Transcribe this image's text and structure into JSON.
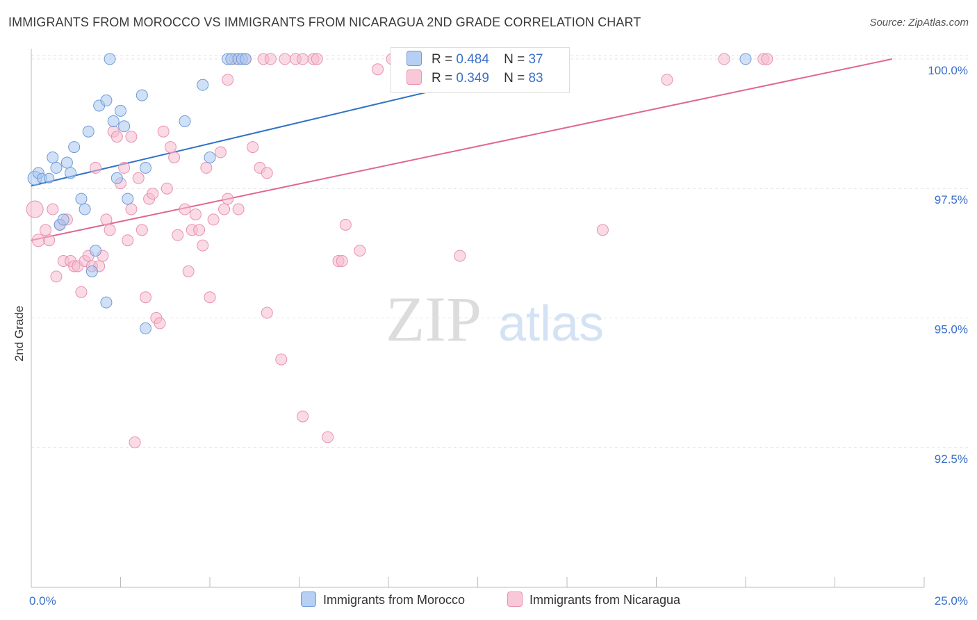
{
  "header": {
    "title": "IMMIGRANTS FROM MOROCCO VS IMMIGRANTS FROM NICARAGUA 2ND GRADE CORRELATION CHART",
    "source": "Source: ZipAtlas.com"
  },
  "watermark": {
    "zip": "ZIP",
    "atlas": "atlas"
  },
  "colors": {
    "morocco_fill": "#a9c6ef",
    "morocco_stroke": "#6d9ad9",
    "morocco_line": "#2f72c8",
    "nicaragua_fill": "#f6bcd0",
    "nicaragua_stroke": "#e891b0",
    "nicaragua_line": "#e0668f",
    "axis_tick_text": "#3a6fc8",
    "grid": "#e2e2e2"
  },
  "legend": {
    "rows": [
      {
        "r_label": "R =",
        "r_value": "0.484",
        "n_label": "N =",
        "n_value": "37"
      },
      {
        "r_label": "R =",
        "r_value": "0.349",
        "n_label": "N =",
        "n_value": "83"
      }
    ],
    "bottom": [
      "Immigrants from Morocco",
      "Immigrants from Nicaragua"
    ]
  },
  "chart_data": {
    "type": "scatter",
    "title": "IMMIGRANTS FROM MOROCCO VS IMMIGRANTS FROM NICARAGUA 2ND GRADE CORRELATION CHART",
    "xlabel": "",
    "ylabel": "2nd Grade",
    "xlim": [
      0,
      25
    ],
    "ylim": [
      89.8,
      100.2
    ],
    "x_ticks_labels": [
      {
        "value": 0,
        "label": "0.0%"
      },
      {
        "value": 25,
        "label": "25.0%"
      }
    ],
    "y_ticks": [
      {
        "value": 100.0,
        "label": "100.0%"
      },
      {
        "value": 97.5,
        "label": "97.5%"
      },
      {
        "value": 95.0,
        "label": "95.0%"
      },
      {
        "value": 92.5,
        "label": "92.5%"
      }
    ],
    "grid": true,
    "series": [
      {
        "name": "Immigrants from Morocco",
        "r": 0.484,
        "n": 37,
        "trend": {
          "x": [
            0.0,
            15.0
          ],
          "y": [
            97.55,
            100.0
          ]
        },
        "points": [
          [
            0.1,
            97.7,
            10
          ],
          [
            0.2,
            97.8,
            8
          ],
          [
            0.3,
            97.7,
            7
          ],
          [
            0.5,
            97.7,
            7
          ],
          [
            0.6,
            98.1,
            8
          ],
          [
            0.7,
            97.9,
            8
          ],
          [
            1.0,
            98.0,
            8
          ],
          [
            1.1,
            97.8,
            8
          ],
          [
            1.2,
            98.3,
            8
          ],
          [
            0.8,
            96.8,
            8
          ],
          [
            0.9,
            96.9,
            8
          ],
          [
            1.4,
            97.3,
            8
          ],
          [
            1.5,
            97.1,
            8
          ],
          [
            1.6,
            98.6,
            8
          ],
          [
            1.7,
            95.9,
            8
          ],
          [
            1.8,
            96.3,
            8
          ],
          [
            1.9,
            99.1,
            8
          ],
          [
            2.1,
            95.3,
            8
          ],
          [
            2.1,
            99.2,
            8
          ],
          [
            2.2,
            100.0,
            8
          ],
          [
            2.3,
            98.8,
            8
          ],
          [
            2.5,
            99.0,
            8
          ],
          [
            2.4,
            97.7,
            8
          ],
          [
            2.6,
            98.7,
            8
          ],
          [
            2.7,
            97.3,
            8
          ],
          [
            3.1,
            99.3,
            8
          ],
          [
            3.2,
            97.9,
            8
          ],
          [
            3.2,
            94.8,
            8
          ],
          [
            4.3,
            98.8,
            8
          ],
          [
            4.8,
            99.5,
            8
          ],
          [
            5.0,
            98.1,
            8
          ],
          [
            5.5,
            100.0,
            8
          ],
          [
            5.6,
            100.0,
            8
          ],
          [
            5.8,
            100.0,
            8
          ],
          [
            5.9,
            100.0,
            8
          ],
          [
            6.0,
            100.0,
            8
          ],
          [
            20.0,
            100.0,
            8
          ]
        ]
      },
      {
        "name": "Immigrants from Nicaragua",
        "r": 0.349,
        "n": 83,
        "trend": {
          "x": [
            0.0,
            24.1
          ],
          "y": [
            96.5,
            100.0
          ]
        },
        "points": [
          [
            0.1,
            97.1,
            12
          ],
          [
            0.2,
            96.5,
            9
          ],
          [
            0.4,
            96.7,
            8
          ],
          [
            0.5,
            96.5,
            8
          ],
          [
            0.6,
            97.1,
            8
          ],
          [
            0.7,
            95.8,
            8
          ],
          [
            0.8,
            96.8,
            8
          ],
          [
            0.9,
            96.1,
            8
          ],
          [
            1.0,
            96.9,
            8
          ],
          [
            1.1,
            96.1,
            8
          ],
          [
            1.2,
            96.0,
            8
          ],
          [
            1.3,
            96.0,
            8
          ],
          [
            1.4,
            95.5,
            8
          ],
          [
            1.5,
            96.1,
            8
          ],
          [
            1.6,
            96.2,
            8
          ],
          [
            1.7,
            96.0,
            8
          ],
          [
            1.8,
            97.9,
            8
          ],
          [
            1.9,
            96.0,
            8
          ],
          [
            2.0,
            96.2,
            8
          ],
          [
            2.1,
            96.9,
            8
          ],
          [
            2.2,
            96.7,
            8
          ],
          [
            2.3,
            98.6,
            8
          ],
          [
            2.4,
            98.5,
            8
          ],
          [
            2.5,
            97.6,
            8
          ],
          [
            2.6,
            97.9,
            8
          ],
          [
            2.7,
            96.5,
            8
          ],
          [
            2.8,
            98.5,
            8
          ],
          [
            2.8,
            97.1,
            8
          ],
          [
            2.9,
            92.6,
            8
          ],
          [
            3.0,
            97.7,
            8
          ],
          [
            3.1,
            96.7,
            8
          ],
          [
            3.2,
            95.4,
            8
          ],
          [
            3.3,
            97.3,
            8
          ],
          [
            3.4,
            97.4,
            8
          ],
          [
            3.5,
            95.0,
            8
          ],
          [
            3.6,
            94.9,
            8
          ],
          [
            3.7,
            98.6,
            8
          ],
          [
            3.8,
            97.5,
            8
          ],
          [
            3.9,
            98.3,
            8
          ],
          [
            4.0,
            98.1,
            8
          ],
          [
            4.1,
            96.6,
            8
          ],
          [
            4.3,
            97.1,
            8
          ],
          [
            4.4,
            95.9,
            8
          ],
          [
            4.5,
            96.7,
            8
          ],
          [
            4.6,
            97.0,
            8
          ],
          [
            4.7,
            96.7,
            8
          ],
          [
            4.8,
            96.4,
            8
          ],
          [
            4.9,
            97.9,
            8
          ],
          [
            5.0,
            95.4,
            8
          ],
          [
            5.1,
            96.9,
            8
          ],
          [
            5.3,
            98.2,
            8
          ],
          [
            5.4,
            97.1,
            8
          ],
          [
            5.5,
            97.3,
            8
          ],
          [
            5.5,
            99.6,
            8
          ],
          [
            5.7,
            100.0,
            8
          ],
          [
            5.8,
            97.1,
            8
          ],
          [
            6.0,
            100.0,
            8
          ],
          [
            6.2,
            98.3,
            8
          ],
          [
            6.4,
            97.9,
            8
          ],
          [
            6.5,
            100.0,
            8
          ],
          [
            6.6,
            97.8,
            8
          ],
          [
            6.6,
            95.1,
            8
          ],
          [
            6.7,
            100.0,
            8
          ],
          [
            7.0,
            94.2,
            8
          ],
          [
            7.1,
            100.0,
            8
          ],
          [
            7.4,
            100.0,
            8
          ],
          [
            7.6,
            100.0,
            8
          ],
          [
            7.6,
            93.1,
            8
          ],
          [
            7.9,
            100.0,
            8
          ],
          [
            8.0,
            100.0,
            8
          ],
          [
            8.3,
            92.7,
            8
          ],
          [
            8.6,
            96.1,
            8
          ],
          [
            8.7,
            96.1,
            8
          ],
          [
            8.8,
            96.8,
            8
          ],
          [
            9.2,
            96.3,
            8
          ],
          [
            9.7,
            99.8,
            8
          ],
          [
            10.1,
            100.0,
            8
          ],
          [
            12.0,
            96.2,
            8
          ],
          [
            16.0,
            96.7,
            8
          ],
          [
            17.8,
            99.6,
            8
          ],
          [
            19.4,
            100.0,
            8
          ],
          [
            20.5,
            100.0,
            8
          ],
          [
            20.6,
            100.0,
            8
          ]
        ]
      }
    ]
  }
}
